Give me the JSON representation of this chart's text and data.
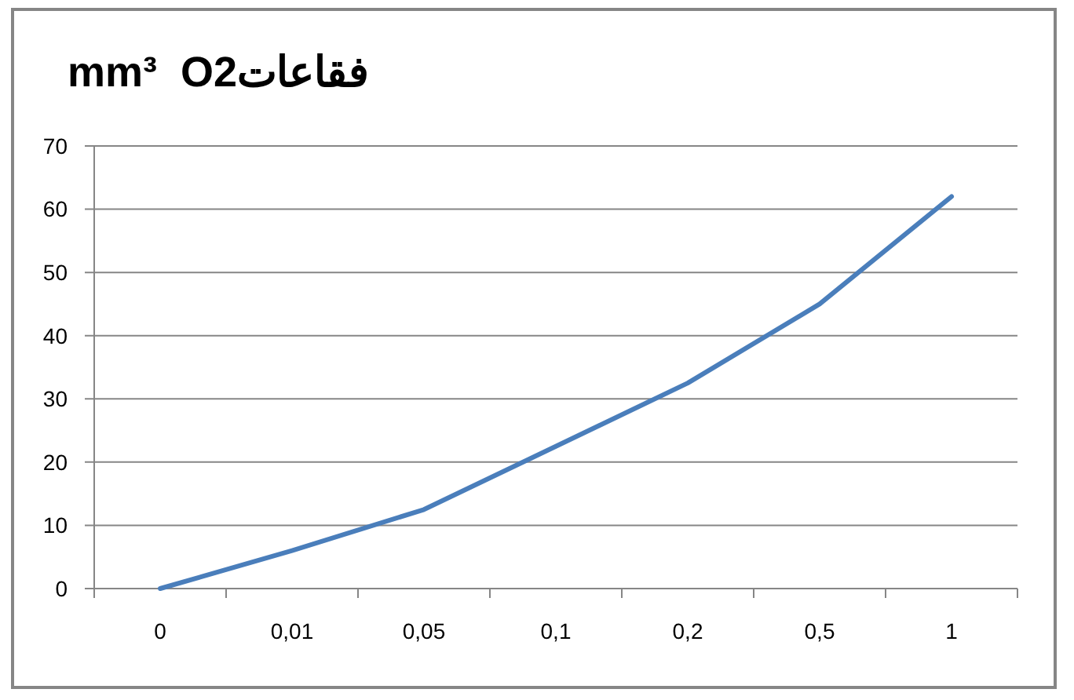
{
  "chart_data": {
    "type": "line",
    "title": "mm³  O2فقاعات",
    "categories": [
      "0",
      "0,01",
      "0,05",
      "0,1",
      "0,2",
      "0,5",
      "1"
    ],
    "values": [
      0,
      6,
      12.5,
      22.5,
      32.5,
      45,
      62
    ],
    "color": "#4a7ebb",
    "ylim": [
      0,
      70
    ],
    "yticks": [
      0,
      10,
      20,
      30,
      40,
      50,
      60,
      70
    ],
    "grid": "y"
  }
}
